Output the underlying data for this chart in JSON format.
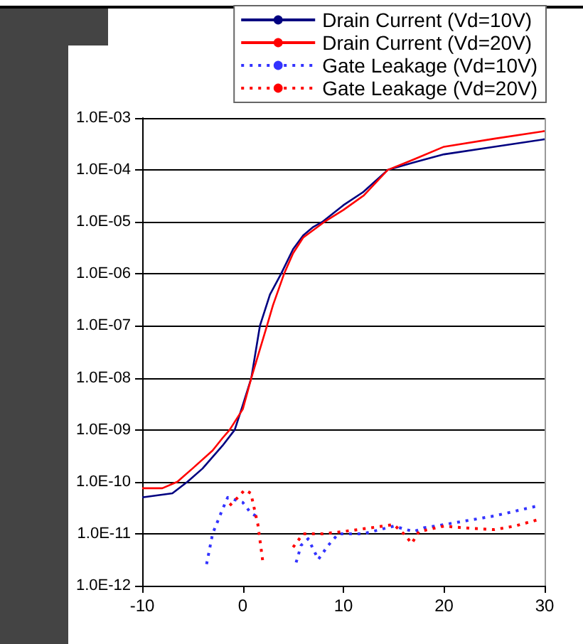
{
  "chart_data": {
    "type": "line",
    "log": "y",
    "grid": "y",
    "legend": "top right",
    "marker": "none",
    "xlim": [
      -10,
      30
    ],
    "xticks": [
      -10,
      0,
      10,
      20,
      30
    ],
    "ylim": [
      1e-12,
      0.001
    ],
    "yticks": [
      {
        "value": 1e-12,
        "label": "1.0E-12"
      },
      {
        "value": 1e-11,
        "label": "1.0E-11"
      },
      {
        "value": 1e-10,
        "label": "1.0E-10"
      },
      {
        "value": 1e-09,
        "label": "1.0E-09"
      },
      {
        "value": 1e-08,
        "label": "1.0E-08"
      },
      {
        "value": 1e-07,
        "label": "1.0E-07"
      },
      {
        "value": 1e-06,
        "label": "1.0E-06"
      },
      {
        "value": 1e-05,
        "label": "1.0E-05"
      },
      {
        "value": 0.0001,
        "label": "1.0E-04"
      },
      {
        "value": 0.001,
        "label": "1.0E-03"
      }
    ],
    "series": [
      {
        "name": "Drain Current (Vd=10V)",
        "color": "#000080",
        "line_style": "solid",
        "x": [
          -10,
          -7,
          -5.5,
          -4,
          -3,
          -2,
          -0.8,
          0,
          0.85,
          1.7,
          2.7,
          3.8,
          5,
          6,
          7,
          7.9,
          10,
          12,
          14.4,
          17,
          20,
          25,
          30
        ],
        "values": [
          5e-11,
          6e-11,
          1e-10,
          1.8e-10,
          3e-10,
          5e-10,
          1e-09,
          3e-09,
          1e-08,
          1e-07,
          4e-07,
          1e-06,
          3e-06,
          5.5e-06,
          8e-06,
          1e-05,
          2.1e-05,
          3.8e-05,
          0.0001,
          0.00014,
          0.0002,
          0.00028,
          0.00039
        ]
      },
      {
        "name": "Drain Current (Vd=20V)",
        "color": "#ff0000",
        "line_style": "solid",
        "x": [
          -10,
          -8,
          -6.5,
          -5,
          -3,
          -2,
          -1.3,
          0,
          0.85,
          2.4,
          3,
          4.1,
          5,
          6,
          8.1,
          10,
          12,
          14.4,
          17,
          20,
          25,
          30
        ],
        "values": [
          7.5e-11,
          7.5e-11,
          1e-10,
          1.8e-10,
          4e-10,
          7e-10,
          1e-09,
          2.5e-09,
          1e-08,
          1e-07,
          2.5e-07,
          1e-06,
          2.5e-06,
          5e-06,
          1e-05,
          1.7e-05,
          3.2e-05,
          0.0001,
          0.00016,
          0.00028,
          0.0004,
          0.00056
        ]
      },
      {
        "name": "Gate Leakage (Vd=10V)",
        "color": "#3333ff",
        "line_style": "dotted",
        "x": [
          -3.6,
          -3,
          -2,
          -1.5,
          0,
          0.8,
          1.3,
          3,
          5.3,
          5.8,
          6.5,
          7.5,
          8.5,
          9.5,
          12,
          15,
          17,
          18,
          20,
          25,
          29.5
        ],
        "values": [
          2.6e-12,
          1e-11,
          3e-11,
          5e-11,
          4e-11,
          2.5e-11,
          2.2e-11,
          null,
          2.8e-12,
          6e-12,
          8e-12,
          3.2e-12,
          6e-12,
          1e-11,
          1e-11,
          1.4e-11,
          1.1e-11,
          1.3e-11,
          1.5e-11,
          2.2e-11,
          3.5e-11
        ]
      },
      {
        "name": "Gate Leakage (Vd=20V)",
        "color": "#ff0000",
        "line_style": "dotted",
        "x": [
          -1.3,
          -0.5,
          0.2,
          0.8,
          1.5,
          2,
          3.5,
          5,
          6,
          8,
          10,
          15,
          16,
          16.8,
          17.5,
          20,
          22,
          25,
          27,
          29.5
        ],
        "values": [
          3.5e-11,
          5e-11,
          7e-11,
          6e-11,
          1.5e-11,
          2.8e-12,
          null,
          5.5e-12,
          1e-11,
          1e-11,
          1.1e-11,
          1.5e-11,
          1e-11,
          6.5e-12,
          1.1e-11,
          1.4e-11,
          1.3e-11,
          1.2e-11,
          1.4e-11,
          1.9e-11
        ]
      }
    ]
  }
}
